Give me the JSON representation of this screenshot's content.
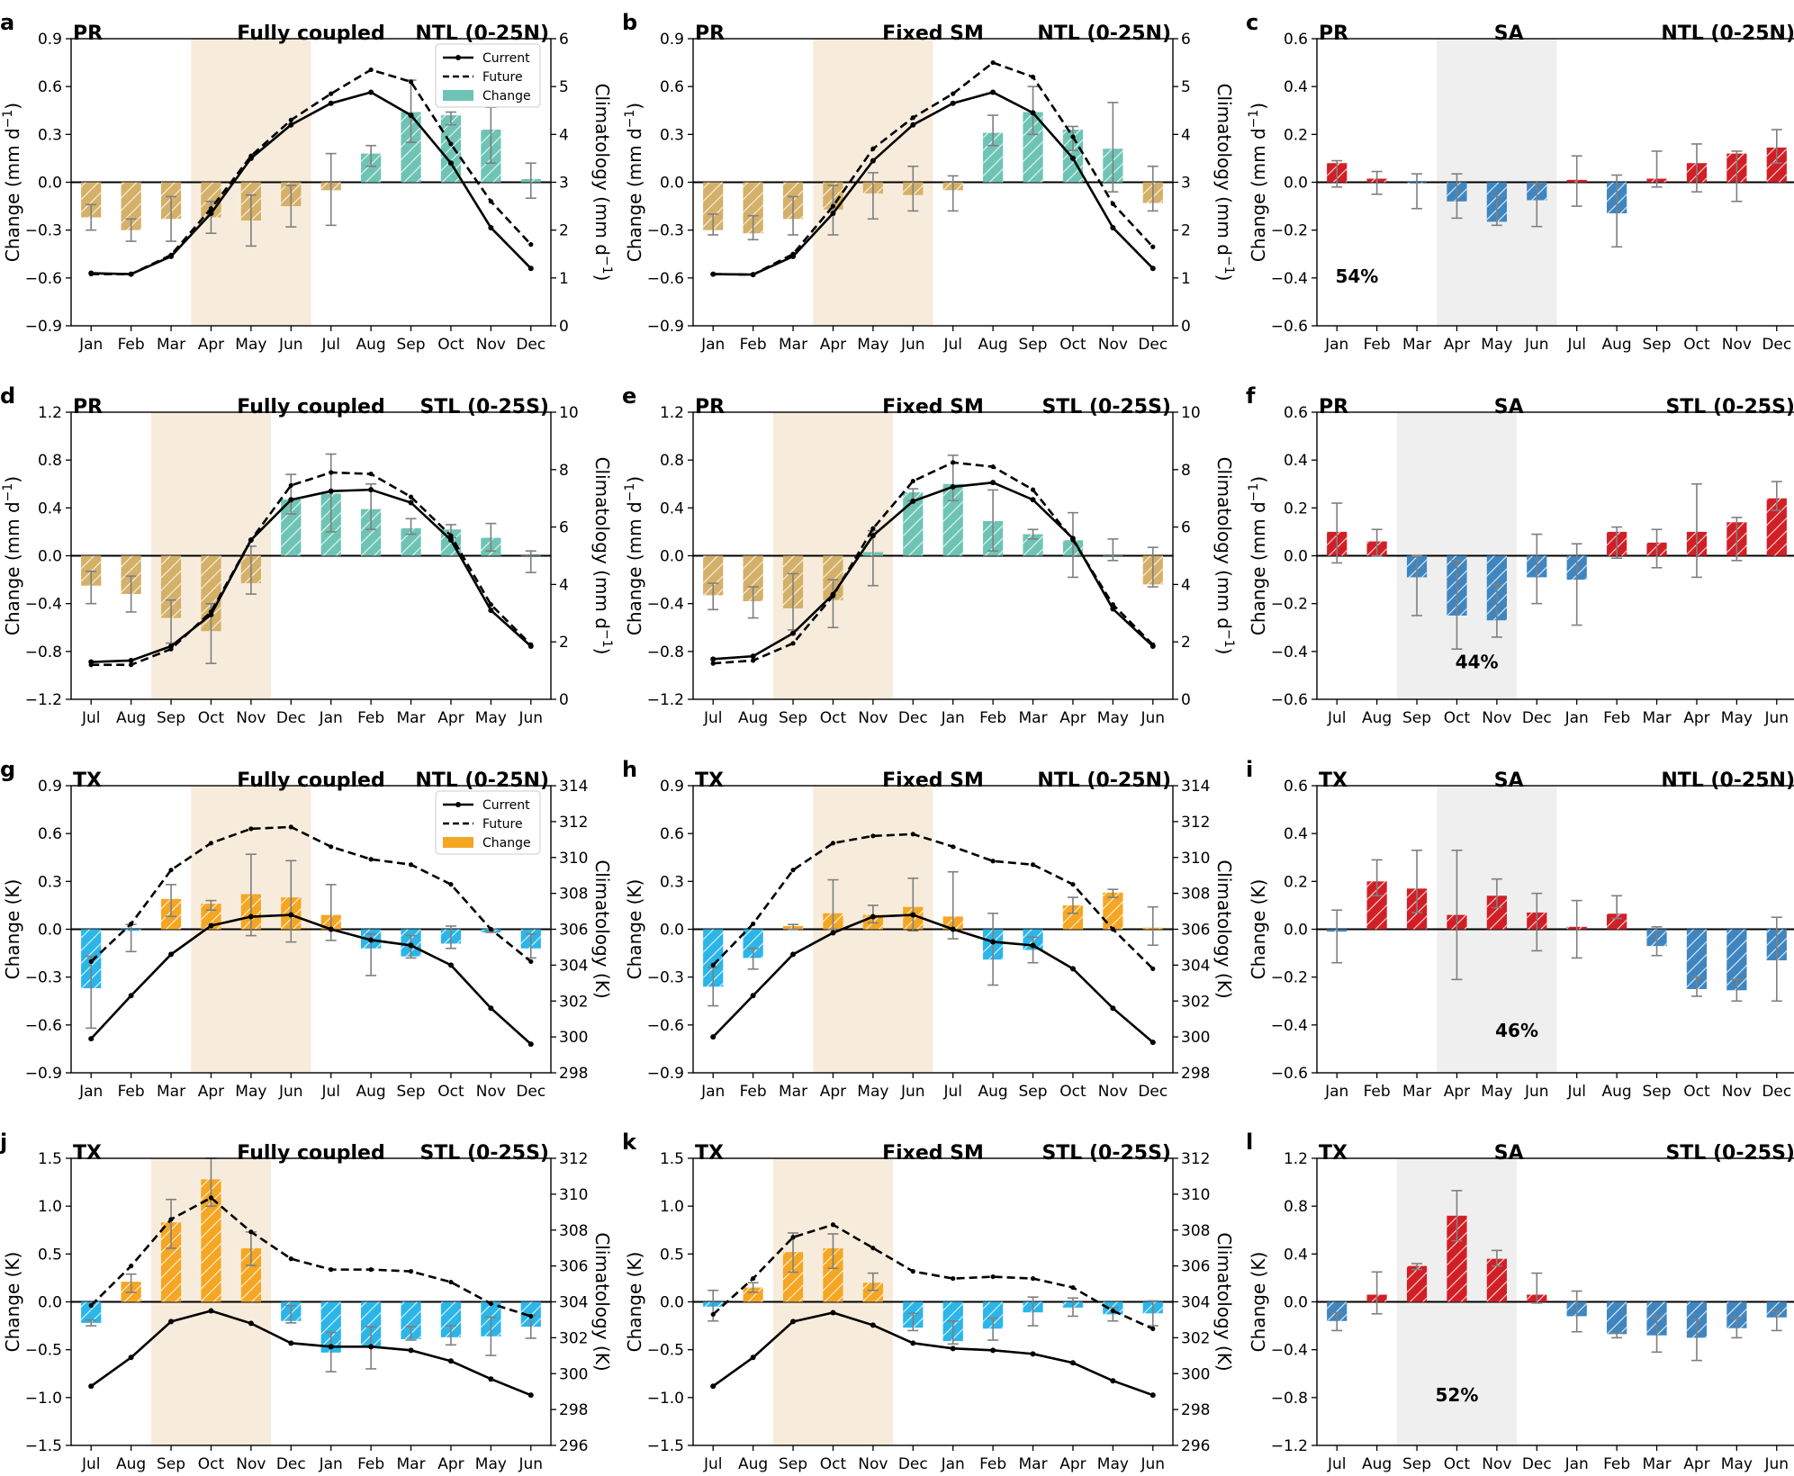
{
  "months_jan": [
    "Jan",
    "Feb",
    "Mar",
    "Apr",
    "May",
    "Jun",
    "Jul",
    "Aug",
    "Sep",
    "Oct",
    "Nov",
    "Dec"
  ],
  "months_jul": [
    "Jul",
    "Aug",
    "Sep",
    "Oct",
    "Nov",
    "Dec",
    "Jan",
    "Feb",
    "Mar",
    "Apr",
    "May",
    "Jun"
  ],
  "colors": {
    "pr_pos": "#6ec4b4",
    "pr_neg": "#d4b068",
    "tx_pos": "#f5a623",
    "tx_neg": "#2bb5e8",
    "sa_pos": "#d21f26",
    "sa_neg": "#3f86c0",
    "season_shade": "#f7ecdc",
    "sa_shade": "#efefef"
  },
  "legends": {
    "pr": {
      "current": "Current",
      "future": "Future",
      "change": "Change"
    },
    "tx": {
      "current": "Current",
      "future": "Future",
      "change": "Change"
    }
  },
  "chart_data": [
    {
      "id": "a",
      "type": "bar+line",
      "letter": "a",
      "var": "PR",
      "title": "Fully coupled",
      "region": "NTL (0-25N)",
      "months": "jan",
      "ylim": [
        -0.9,
        0.9
      ],
      "yticks": [
        -0.9,
        -0.6,
        -0.3,
        0.0,
        0.3,
        0.6,
        0.9
      ],
      "y2lim": [
        0,
        6
      ],
      "y2ticks": [
        0,
        1,
        2,
        3,
        4,
        5,
        6
      ],
      "ylabel": "Change (mm d⁻¹)",
      "y2label": "Climatology (mm d⁻¹)",
      "season": [
        3,
        5
      ],
      "colorset": "pr",
      "legend": "pr",
      "change": [
        -0.22,
        -0.3,
        -0.23,
        -0.22,
        -0.24,
        -0.15,
        -0.05,
        0.18,
        0.44,
        0.42,
        0.33,
        0.02
      ],
      "err_lo": [
        -0.3,
        -0.37,
        -0.37,
        -0.32,
        -0.4,
        -0.28,
        -0.27,
        0.1,
        0.25,
        0.36,
        0.12,
        -0.1
      ],
      "err_hi": [
        -0.14,
        -0.23,
        -0.09,
        -0.12,
        -0.08,
        -0.02,
        0.18,
        0.23,
        0.64,
        0.44,
        0.47,
        0.12
      ],
      "current": [
        1.1,
        1.08,
        1.45,
        2.35,
        3.5,
        4.2,
        4.65,
        4.88,
        4.4,
        3.4,
        2.05,
        1.2
      ],
      "future": [
        1.08,
        1.08,
        1.48,
        2.45,
        3.55,
        4.3,
        4.85,
        5.35,
        5.1,
        3.8,
        2.6,
        1.7
      ]
    },
    {
      "id": "b",
      "type": "bar+line",
      "letter": "b",
      "var": "PR",
      "title": "Fixed SM",
      "region": "NTL (0-25N)",
      "months": "jan",
      "ylim": [
        -0.9,
        0.9
      ],
      "yticks": [
        -0.9,
        -0.6,
        -0.3,
        0.0,
        0.3,
        0.6,
        0.9
      ],
      "y2lim": [
        0,
        6
      ],
      "y2ticks": [
        0,
        1,
        2,
        3,
        4,
        5,
        6
      ],
      "ylabel": "Change (mm d⁻¹)",
      "y2label": "Climatology (mm d⁻¹)",
      "season": [
        3,
        5
      ],
      "colorset": "pr",
      "change": [
        -0.3,
        -0.32,
        -0.23,
        -0.17,
        -0.07,
        -0.08,
        -0.05,
        0.31,
        0.44,
        0.33,
        0.21,
        -0.13
      ],
      "err_lo": [
        -0.33,
        -0.36,
        -0.33,
        -0.33,
        -0.23,
        -0.18,
        -0.18,
        0.23,
        0.3,
        0.2,
        -0.06,
        -0.18
      ],
      "err_hi": [
        -0.2,
        -0.21,
        -0.09,
        -0.02,
        0.06,
        0.1,
        0.04,
        0.42,
        0.6,
        0.35,
        0.5,
        0.1
      ],
      "current": [
        1.08,
        1.07,
        1.45,
        2.35,
        3.45,
        4.2,
        4.65,
        4.88,
        4.45,
        3.5,
        2.05,
        1.2
      ],
      "future": [
        1.08,
        1.07,
        1.5,
        2.5,
        3.7,
        4.35,
        4.85,
        5.5,
        5.2,
        3.95,
        2.55,
        1.65
      ]
    },
    {
      "id": "c",
      "type": "bar",
      "letter": "c",
      "var": "PR",
      "title": "SA",
      "region": "NTL (0-25N)",
      "months": "jan",
      "ylim": [
        -0.6,
        0.6
      ],
      "yticks": [
        -0.6,
        -0.4,
        -0.2,
        0.0,
        0.2,
        0.4,
        0.6
      ],
      "ylabel": "Change (mm d⁻¹)",
      "season": [
        3,
        5
      ],
      "colorset": "sa",
      "pct": "54%",
      "pct_pos": [
        0.5,
        -0.42
      ],
      "change": [
        0.08,
        0.015,
        -0.005,
        -0.08,
        -0.165,
        -0.075,
        0.01,
        -0.13,
        0.015,
        0.08,
        0.12,
        0.145
      ],
      "err_lo": [
        -0.02,
        -0.05,
        -0.11,
        -0.15,
        -0.18,
        -0.185,
        -0.1,
        -0.27,
        -0.02,
        -0.04,
        -0.08,
        0.08
      ],
      "err_hi": [
        0.09,
        0.045,
        0.035,
        0.035,
        -0.06,
        -0.005,
        0.11,
        0.03,
        0.13,
        0.16,
        0.13,
        0.22
      ]
    },
    {
      "id": "d",
      "type": "bar+line",
      "letter": "d",
      "var": "PR",
      "title": "Fully coupled",
      "region": "STL (0-25S)",
      "months": "jul",
      "ylim": [
        -1.2,
        1.2
      ],
      "yticks": [
        -1.2,
        -0.8,
        -0.4,
        0.0,
        0.4,
        0.8,
        1.2
      ],
      "y2lim": [
        0,
        10
      ],
      "y2ticks": [
        0,
        2,
        4,
        6,
        8,
        10
      ],
      "ylabel": "Change (mm d⁻¹)",
      "y2label": "Climatology (mm d⁻¹)",
      "season": [
        2,
        4
      ],
      "colorset": "pr",
      "change": [
        -0.25,
        -0.32,
        -0.52,
        -0.63,
        -0.23,
        0.47,
        0.52,
        0.39,
        0.23,
        0.22,
        0.15,
        0.0
      ],
      "err_lo": [
        -0.4,
        -0.47,
        -0.73,
        -0.9,
        -0.32,
        0.35,
        0.2,
        0.22,
        0.18,
        0.15,
        0.04,
        -0.14
      ],
      "err_hi": [
        -0.13,
        -0.17,
        -0.37,
        -0.4,
        0.08,
        0.68,
        0.85,
        0.6,
        0.31,
        0.26,
        0.27,
        0.04
      ],
      "current": [
        1.3,
        1.35,
        1.85,
        2.95,
        5.55,
        6.95,
        7.25,
        7.3,
        6.85,
        5.55,
        3.1,
        1.85
      ],
      "future": [
        1.2,
        1.2,
        1.75,
        3.05,
        5.55,
        7.45,
        7.9,
        7.85,
        7.05,
        5.7,
        3.3,
        1.9
      ]
    },
    {
      "id": "e",
      "type": "bar+line",
      "letter": "e",
      "var": "PR",
      "title": "Fixed SM",
      "region": "STL (0-25S)",
      "months": "jul",
      "ylim": [
        -1.2,
        1.2
      ],
      "yticks": [
        -1.2,
        -0.8,
        -0.4,
        0.0,
        0.4,
        0.8,
        1.2
      ],
      "y2lim": [
        0,
        10
      ],
      "y2ticks": [
        0,
        2,
        4,
        6,
        8,
        10
      ],
      "ylabel": "Change (mm d⁻¹)",
      "y2label": "Climatology (mm d⁻¹)",
      "season": [
        2,
        4
      ],
      "colorset": "pr",
      "change": [
        -0.33,
        -0.38,
        -0.44,
        -0.37,
        0.03,
        0.53,
        0.6,
        0.29,
        0.18,
        0.13,
        0.0,
        -0.24
      ],
      "err_lo": [
        -0.45,
        -0.52,
        -0.62,
        -0.6,
        -0.25,
        0.46,
        0.46,
        0.04,
        0.14,
        -0.18,
        -0.04,
        -0.26
      ],
      "err_hi": [
        -0.23,
        -0.26,
        -0.15,
        -0.2,
        0.21,
        0.56,
        0.84,
        0.55,
        0.22,
        0.36,
        0.14,
        0.07
      ],
      "current": [
        1.4,
        1.5,
        2.3,
        3.65,
        5.7,
        6.9,
        7.4,
        7.55,
        6.95,
        5.6,
        3.15,
        1.85
      ],
      "future": [
        1.25,
        1.35,
        1.95,
        3.6,
        5.95,
        7.6,
        8.25,
        8.1,
        7.3,
        5.55,
        3.3,
        1.9
      ]
    },
    {
      "id": "f",
      "type": "bar",
      "letter": "f",
      "var": "PR",
      "title": "SA",
      "region": "STL (0-25S)",
      "months": "jul",
      "ylim": [
        -0.6,
        0.6
      ],
      "yticks": [
        -0.6,
        -0.4,
        -0.2,
        0.0,
        0.2,
        0.4,
        0.6
      ],
      "ylabel": "Change (mm d⁻¹)",
      "season": [
        2,
        4
      ],
      "colorset": "sa",
      "pct": "44%",
      "pct_pos": [
        3.5,
        -0.47
      ],
      "change": [
        0.1,
        0.06,
        -0.09,
        -0.25,
        -0.27,
        -0.09,
        -0.1,
        0.1,
        0.055,
        0.1,
        0.14,
        0.24
      ],
      "err_lo": [
        -0.03,
        0.0,
        -0.25,
        -0.39,
        -0.34,
        -0.2,
        -0.29,
        -0.01,
        -0.05,
        -0.09,
        -0.02,
        0.19
      ],
      "err_hi": [
        0.22,
        0.11,
        0.0,
        -0.02,
        -0.12,
        0.09,
        0.05,
        0.12,
        0.11,
        0.3,
        0.16,
        0.31
      ]
    },
    {
      "id": "g",
      "type": "bar+line",
      "letter": "g",
      "var": "TX",
      "title": "Fully coupled",
      "region": "NTL (0-25N)",
      "months": "jan",
      "ylim": [
        -0.9,
        0.9
      ],
      "yticks": [
        -0.9,
        -0.6,
        -0.3,
        0.0,
        0.3,
        0.6,
        0.9
      ],
      "y2lim": [
        298,
        314
      ],
      "y2ticks": [
        298,
        300,
        302,
        304,
        306,
        308,
        310,
        312,
        314
      ],
      "ylabel": "Change (K)",
      "y2label": "Climatology (K)",
      "season": [
        3,
        5
      ],
      "colorset": "tx",
      "legend": "tx",
      "change": [
        -0.37,
        -0.01,
        0.19,
        0.16,
        0.22,
        0.2,
        0.09,
        -0.12,
        -0.17,
        -0.09,
        -0.02,
        -0.12
      ],
      "err_lo": [
        -0.62,
        -0.14,
        0.08,
        0.12,
        -0.04,
        -0.08,
        -0.07,
        -0.29,
        -0.18,
        -0.12,
        -0.02,
        -0.18
      ],
      "err_hi": [
        -0.17,
        0.03,
        0.28,
        0.18,
        0.47,
        0.43,
        0.28,
        -0.03,
        -0.04,
        0.02,
        0.0,
        -0.03
      ],
      "current": [
        299.9,
        302.3,
        304.6,
        306.2,
        306.7,
        306.8,
        306,
        305.4,
        305.1,
        304,
        301.6,
        299.6
      ],
      "future": [
        304.2,
        306.3,
        309.3,
        310.8,
        311.6,
        311.7,
        310.6,
        309.9,
        309.6,
        308.5,
        306,
        304.2
      ]
    },
    {
      "id": "h",
      "type": "bar+line",
      "letter": "h",
      "var": "TX",
      "title": "Fixed SM",
      "region": "NTL (0-25N)",
      "months": "jan",
      "ylim": [
        -0.9,
        0.9
      ],
      "yticks": [
        -0.9,
        -0.6,
        -0.3,
        0.0,
        0.3,
        0.6,
        0.9
      ],
      "y2lim": [
        298,
        314
      ],
      "y2ticks": [
        298,
        300,
        302,
        304,
        306,
        308,
        310,
        312,
        314
      ],
      "ylabel": "Change (K)",
      "y2label": "Climatology (K)",
      "season": [
        3,
        5
      ],
      "colorset": "tx",
      "change": [
        -0.36,
        -0.18,
        0.02,
        0.1,
        0.09,
        0.14,
        0.08,
        -0.19,
        -0.13,
        0.15,
        0.23,
        0.01
      ],
      "err_lo": [
        -0.48,
        -0.25,
        0.0,
        0.0,
        0.04,
        -0.01,
        -0.06,
        -0.35,
        -0.21,
        0.1,
        0.2,
        -0.1
      ],
      "err_hi": [
        -0.24,
        -0.12,
        0.03,
        0.31,
        0.15,
        0.32,
        0.36,
        0.1,
        -0.05,
        0.2,
        0.25,
        0.14
      ],
      "current": [
        300,
        302.3,
        304.6,
        305.8,
        306.7,
        306.8,
        306,
        305.3,
        305.1,
        303.8,
        301.6,
        299.7
      ],
      "future": [
        304,
        306.3,
        309.3,
        310.8,
        311.2,
        311.3,
        310.6,
        309.8,
        309.6,
        308.5,
        306,
        303.8
      ]
    },
    {
      "id": "i",
      "type": "bar",
      "letter": "i",
      "var": "TX",
      "title": "SA",
      "region": "NTL (0-25N)",
      "months": "jan",
      "ylim": [
        -0.6,
        0.6
      ],
      "yticks": [
        -0.6,
        -0.4,
        -0.2,
        0.0,
        0.2,
        0.4,
        0.6
      ],
      "ylabel": "Change (K)",
      "season": [
        3,
        5
      ],
      "colorset": "sa",
      "pct": "46%",
      "pct_pos": [
        4.5,
        -0.45
      ],
      "change": [
        -0.01,
        0.2,
        0.17,
        0.06,
        0.14,
        0.07,
        0.01,
        0.065,
        -0.07,
        -0.25,
        -0.255,
        -0.13
      ],
      "err_lo": [
        -0.14,
        0.14,
        0.07,
        -0.21,
        0.09,
        -0.09,
        -0.12,
        0.045,
        -0.11,
        -0.28,
        -0.3,
        -0.3
      ],
      "err_hi": [
        0.08,
        0.29,
        0.33,
        0.33,
        0.21,
        0.15,
        0.12,
        0.14,
        0.01,
        -0.2,
        -0.21,
        0.05
      ]
    },
    {
      "id": "j",
      "type": "bar+line",
      "letter": "j",
      "var": "TX",
      "title": "Fully coupled",
      "region": "STL (0-25S)",
      "months": "jul",
      "ylim": [
        -1.5,
        1.5
      ],
      "yticks": [
        -1.5,
        -1.0,
        -0.5,
        0.0,
        0.5,
        1.0,
        1.5
      ],
      "y2lim": [
        296,
        312
      ],
      "y2ticks": [
        296,
        298,
        300,
        302,
        304,
        306,
        308,
        310,
        312
      ],
      "ylabel": "Change (K)",
      "y2label": "Climatology (K)",
      "season": [
        2,
        4
      ],
      "colorset": "tx",
      "change": [
        -0.22,
        0.21,
        0.83,
        1.28,
        0.56,
        -0.2,
        -0.53,
        -0.48,
        -0.39,
        -0.37,
        -0.36,
        -0.26
      ],
      "err_lo": [
        -0.25,
        0.1,
        0.56,
        1.0,
        0.38,
        -0.22,
        -0.73,
        -0.7,
        -0.4,
        -0.45,
        -0.56,
        -0.38
      ],
      "err_hi": [
        -0.19,
        0.29,
        1.07,
        1.5,
        0.73,
        -0.04,
        -0.32,
        -0.26,
        -0.26,
        -0.25,
        -0.16,
        -0.14
      ],
      "current": [
        299.3,
        300.9,
        302.9,
        303.5,
        302.8,
        301.7,
        301.5,
        301.5,
        301.3,
        300.7,
        299.7,
        298.8
      ],
      "future": [
        303.8,
        306,
        308.6,
        309.8,
        307.9,
        306.4,
        305.8,
        305.8,
        305.7,
        305.1,
        303.9,
        303.2
      ]
    },
    {
      "id": "k",
      "type": "bar+line",
      "letter": "k",
      "var": "TX",
      "title": "Fixed SM",
      "region": "STL (0-25S)",
      "months": "jul",
      "ylim": [
        -1.5,
        1.5
      ],
      "yticks": [
        -1.5,
        -1.0,
        -0.5,
        0.0,
        0.5,
        1.0,
        1.5
      ],
      "y2lim": [
        296,
        312
      ],
      "y2ticks": [
        296,
        298,
        300,
        302,
        304,
        306,
        308,
        310,
        312
      ],
      "ylabel": "Change (K)",
      "y2label": "Climatology (K)",
      "season": [
        2,
        4
      ],
      "colorset": "tx",
      "change": [
        -0.05,
        0.15,
        0.52,
        0.56,
        0.2,
        -0.27,
        -0.41,
        -0.28,
        -0.11,
        -0.06,
        -0.13,
        -0.12
      ],
      "err_lo": [
        -0.2,
        0.1,
        0.31,
        0.35,
        0.12,
        -0.3,
        -0.44,
        -0.4,
        -0.25,
        -0.15,
        -0.2,
        -0.25
      ],
      "err_hi": [
        0.12,
        0.2,
        0.72,
        0.71,
        0.3,
        -0.12,
        -0.2,
        -0.17,
        0.05,
        0.04,
        -0.06,
        0.01
      ],
      "current": [
        299.3,
        300.9,
        302.9,
        303.4,
        302.7,
        301.7,
        301.4,
        301.3,
        301.1,
        300.6,
        299.6,
        298.8
      ],
      "future": [
        303.3,
        305.3,
        307.6,
        308.3,
        307,
        305.7,
        305.3,
        305.4,
        305.3,
        304.8,
        303.5,
        302.5
      ]
    },
    {
      "id": "l",
      "type": "bar",
      "letter": "l",
      "var": "TX",
      "title": "SA",
      "region": "STL (0-25S)",
      "months": "jul",
      "ylim": [
        -1.2,
        1.2
      ],
      "yticks": [
        -1.2,
        -0.8,
        -0.4,
        0.0,
        0.4,
        0.8,
        1.2
      ],
      "ylabel": "Change (K)",
      "season": [
        2,
        4
      ],
      "colorset": "sa",
      "pct": "52%",
      "pct_pos": [
        3.0,
        -0.83
      ],
      "change": [
        -0.16,
        0.06,
        0.3,
        0.72,
        0.36,
        0.06,
        -0.12,
        -0.27,
        -0.28,
        -0.3,
        -0.22,
        -0.13
      ],
      "err_lo": [
        -0.24,
        -0.1,
        0.27,
        0.51,
        0.3,
        -0.01,
        -0.25,
        -0.3,
        -0.42,
        -0.49,
        -0.3,
        -0.24
      ],
      "err_hi": [
        -0.09,
        0.25,
        0.32,
        0.93,
        0.43,
        0.24,
        0.09,
        -0.26,
        -0.12,
        -0.15,
        -0.13,
        -0.08
      ]
    }
  ]
}
